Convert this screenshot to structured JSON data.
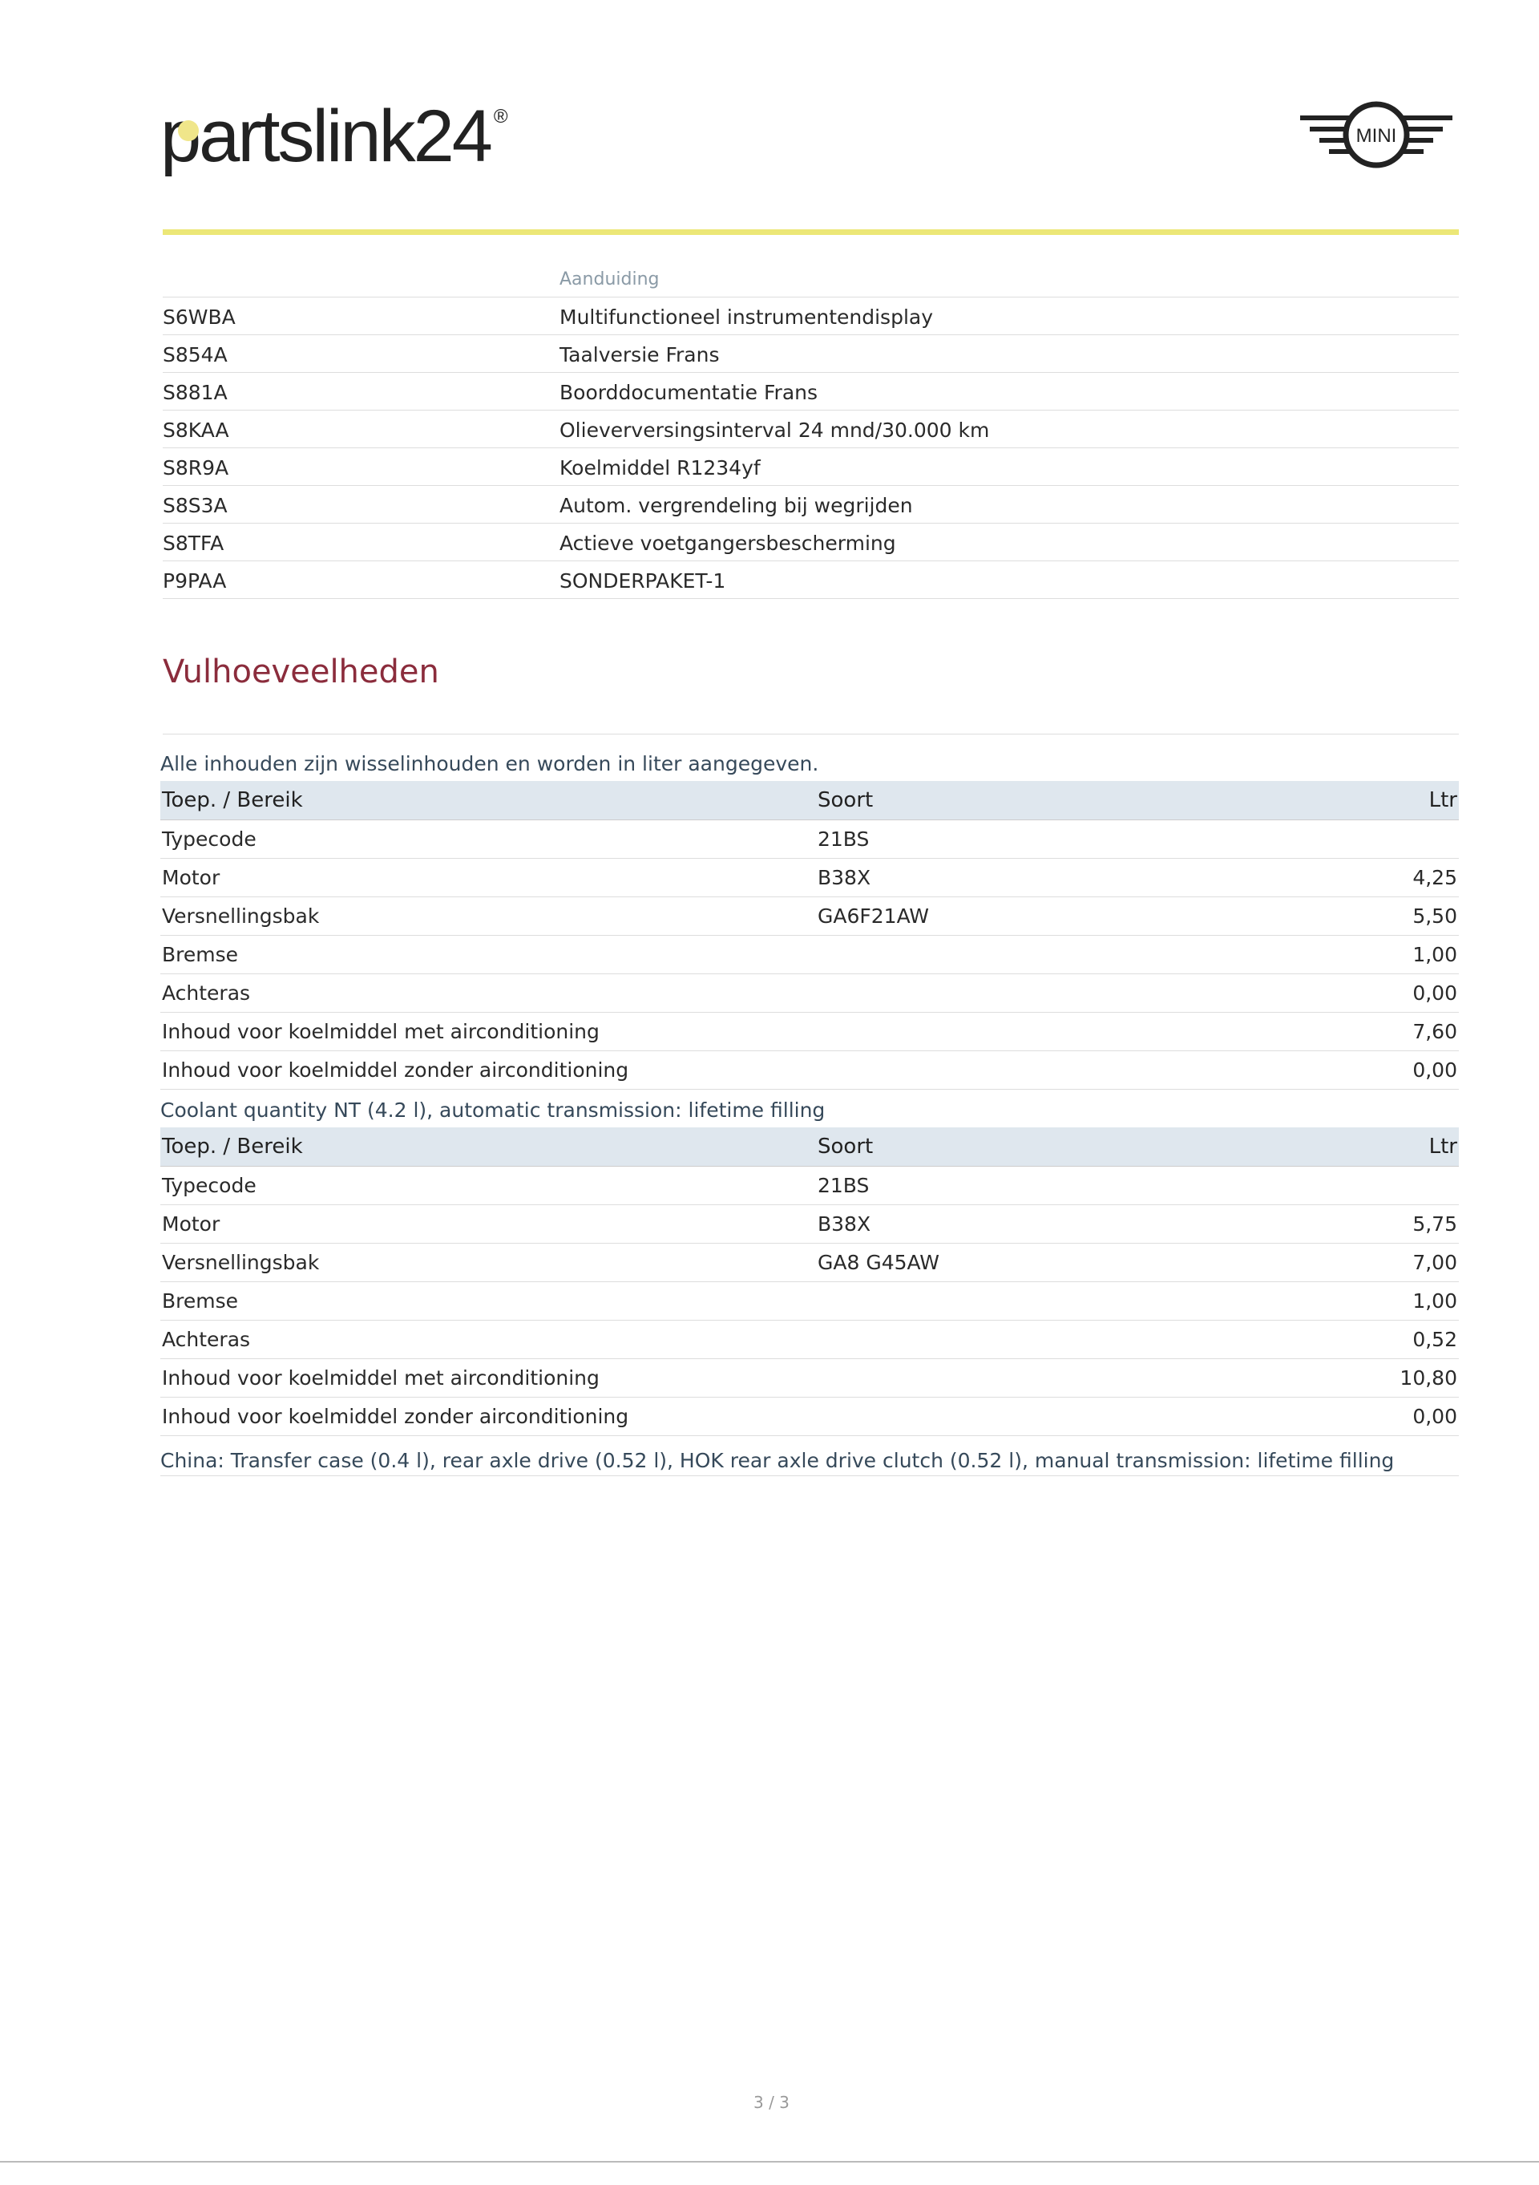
{
  "brand": {
    "logo_text": "partslink24",
    "registered": "®",
    "make_logo": "MINI",
    "accent": "#ece777"
  },
  "codes": {
    "header": "Aanduiding",
    "rows": [
      {
        "code": "S6WBA",
        "desc": "Multifunctioneel instrumentendisplay"
      },
      {
        "code": "S854A",
        "desc": "Taalversie Frans"
      },
      {
        "code": "S881A",
        "desc": "Boorddocumentatie Frans"
      },
      {
        "code": "S8KAA",
        "desc": "Olieverversingsinterval 24 mnd/30.000 km"
      },
      {
        "code": "S8R9A",
        "desc": "Koelmiddel R1234yf"
      },
      {
        "code": "S8S3A",
        "desc": "Autom. vergrendeling bij wegrijden"
      },
      {
        "code": "S8TFA",
        "desc": "Actieve voetgangersbescherming"
      },
      {
        "code": "P9PAA",
        "desc": "SONDERPAKET-1"
      }
    ]
  },
  "section": {
    "title": "Vulhoeveelheden",
    "title_color": "#8b2c3c"
  },
  "tables": [
    {
      "note": "Alle inhouden zijn wisselinhouden en worden in liter aangegeven.",
      "headers": [
        "Toep. / Bereik",
        "Soort",
        "Ltr"
      ],
      "rows": [
        [
          "Typecode",
          "21BS",
          ""
        ],
        [
          "Motor",
          "B38X",
          "4,25"
        ],
        [
          "Versnellingsbak",
          "GA6F21AW",
          "5,50"
        ],
        [
          "Bremse",
          "",
          "1,00"
        ],
        [
          "Achteras",
          "",
          "0,00"
        ],
        [
          "Inhoud voor koelmiddel met airconditioning",
          "",
          "7,60"
        ],
        [
          "Inhoud voor koelmiddel zonder airconditioning",
          "",
          "0,00"
        ]
      ]
    },
    {
      "note": "Coolant quantity NT (4.2 l), automatic transmission: lifetime filling",
      "headers": [
        "Toep. / Bereik",
        "Soort",
        "Ltr"
      ],
      "rows": [
        [
          "Typecode",
          "21BS",
          ""
        ],
        [
          "Motor",
          "B38X",
          "5,75"
        ],
        [
          "Versnellingsbak",
          "GA8 G45AW",
          "7,00"
        ],
        [
          "Bremse",
          "",
          "1,00"
        ],
        [
          "Achteras",
          "",
          "0,52"
        ],
        [
          "Inhoud voor koelmiddel met airconditioning",
          "",
          "10,80"
        ],
        [
          "Inhoud voor koelmiddel zonder airconditioning",
          "",
          "0,00"
        ]
      ],
      "footnote": "China: Transfer case (0.4 l), rear axle drive (0.52 l), HOK rear axle drive clutch (0.52 l), manual transmission: lifetime filling"
    }
  ],
  "page": {
    "number": "3 / 3"
  }
}
